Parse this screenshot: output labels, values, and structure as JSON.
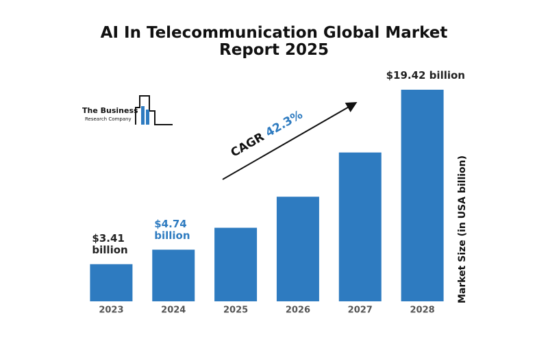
{
  "chart_data": {
    "type": "bar",
    "title": "AI In Telecommunication Global Market Report 2025",
    "categories": [
      "2023",
      "2024",
      "2025",
      "2026",
      "2027",
      "2028"
    ],
    "values": [
      3.41,
      4.74,
      6.75,
      9.6,
      13.66,
      19.42
    ],
    "value_labels": [
      "$3.41 billion",
      "$4.74 billion",
      null,
      null,
      null,
      "$19.42 billion"
    ],
    "value_label_colors": [
      "#222222",
      "#2e7bc0",
      null,
      null,
      null,
      "#222222"
    ],
    "color": "#2e7bc0",
    "y_axis_label": "Market Size (in USA billion)",
    "cagr_label": "CAGR",
    "cagr_value": "42.3%",
    "cagr_color": "#2e7bc0",
    "logo": [
      "The Business",
      "Research Company"
    ]
  }
}
